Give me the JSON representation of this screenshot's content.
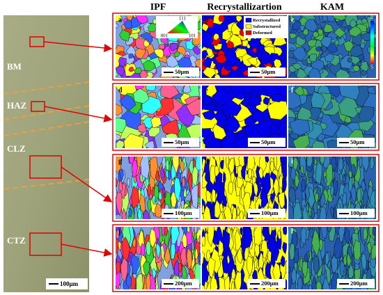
{
  "header": {
    "columns": [
      "IPF",
      "Recrystallizartion",
      "KAM"
    ]
  },
  "micrograph": {
    "zones": [
      "BM",
      "HAZ",
      "CLZ",
      "CTZ"
    ],
    "scale_bar": "100μm"
  },
  "panels": [
    {
      "letter": "a",
      "scale_bar": "50μm"
    },
    {
      "letter": "b",
      "scale_bar": "50μm"
    },
    {
      "letter": "c",
      "scale_bar": ""
    },
    {
      "letter": "d",
      "scale_bar": "50μm"
    },
    {
      "letter": "e",
      "scale_bar": "50μm"
    },
    {
      "letter": "f",
      "scale_bar": "50μm"
    },
    {
      "letter": "g",
      "scale_bar": "100μm"
    },
    {
      "letter": "h",
      "scale_bar": "100μm"
    },
    {
      "letter": "i",
      "scale_bar": "100μm"
    },
    {
      "letter": "j",
      "scale_bar": "200μm"
    },
    {
      "letter": "k",
      "scale_bar": "200μm"
    },
    {
      "letter": "l",
      "scale_bar": "200μm"
    }
  ],
  "legend": {
    "ipf": [
      "111",
      "001",
      "101"
    ],
    "recrystallization": [
      "Recrystallized",
      "Substructured",
      "Deformed"
    ],
    "kam": [
      "0",
      "5"
    ]
  }
}
